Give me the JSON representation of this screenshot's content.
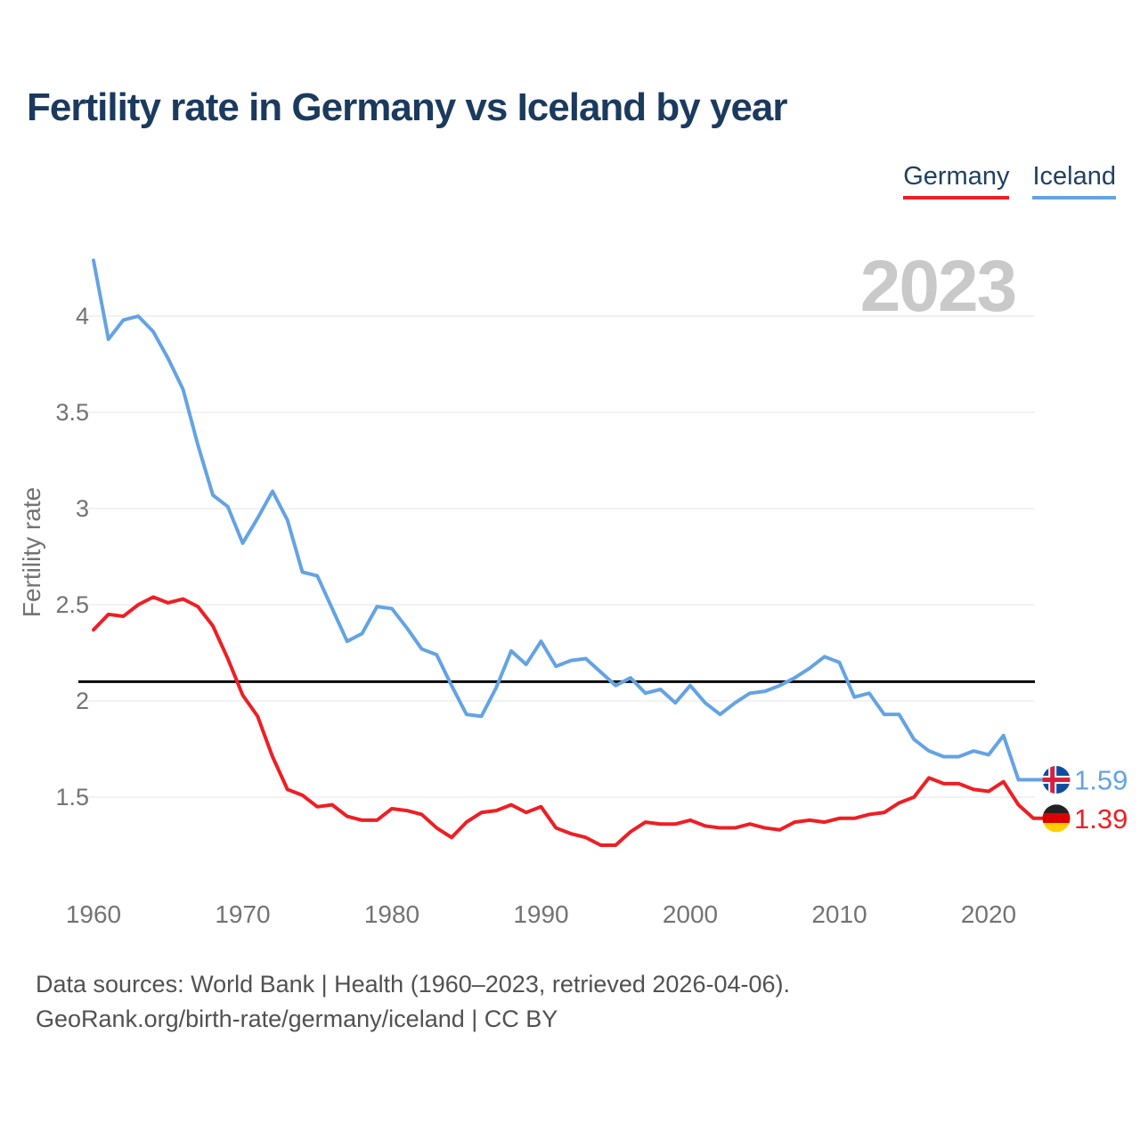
{
  "header": {
    "title": "Fertility rate in Germany vs Iceland by year"
  },
  "legend": {
    "items": [
      {
        "label": "Germany",
        "color": "#ed1f24"
      },
      {
        "label": "Iceland",
        "color": "#64a3e3"
      }
    ]
  },
  "chart_data": {
    "type": "line",
    "title": "Fertility rate in Germany vs Iceland by year",
    "xlabel": "",
    "ylabel": "Fertility rate",
    "grid": true,
    "legend_position": "top-right",
    "xlim": [
      1959,
      2025
    ],
    "ylim": [
      1.1,
      4.4
    ],
    "xticks": [
      1960,
      1970,
      1980,
      1990,
      2000,
      2010,
      2020
    ],
    "yticks": [
      1.5,
      2,
      2.5,
      3,
      3.5,
      4
    ],
    "ytick_labels": [
      "1.5",
      "2",
      "2.5",
      "3",
      "3.5",
      "4"
    ],
    "watermark": "2023",
    "reference_line": {
      "value": 2.1,
      "color": "#000000"
    },
    "x": [
      1960,
      1961,
      1962,
      1963,
      1964,
      1965,
      1966,
      1967,
      1968,
      1969,
      1970,
      1971,
      1972,
      1973,
      1974,
      1975,
      1976,
      1977,
      1978,
      1979,
      1980,
      1981,
      1982,
      1983,
      1984,
      1985,
      1986,
      1987,
      1988,
      1989,
      1990,
      1991,
      1992,
      1993,
      1994,
      1995,
      1996,
      1997,
      1998,
      1999,
      2000,
      2001,
      2002,
      2003,
      2004,
      2005,
      2006,
      2007,
      2008,
      2009,
      2010,
      2011,
      2012,
      2013,
      2014,
      2015,
      2016,
      2017,
      2018,
      2019,
      2020,
      2021,
      2022,
      2023
    ],
    "series": [
      {
        "name": "Germany",
        "color": "#ed1f24",
        "values": [
          2.37,
          2.45,
          2.44,
          2.5,
          2.54,
          2.51,
          2.53,
          2.49,
          2.39,
          2.22,
          2.03,
          1.92,
          1.71,
          1.54,
          1.51,
          1.45,
          1.46,
          1.4,
          1.38,
          1.38,
          1.44,
          1.43,
          1.41,
          1.34,
          1.29,
          1.37,
          1.42,
          1.43,
          1.46,
          1.42,
          1.45,
          1.34,
          1.31,
          1.29,
          1.25,
          1.25,
          1.32,
          1.37,
          1.36,
          1.36,
          1.38,
          1.35,
          1.34,
          1.34,
          1.36,
          1.34,
          1.33,
          1.37,
          1.38,
          1.37,
          1.39,
          1.39,
          1.41,
          1.42,
          1.47,
          1.5,
          1.6,
          1.57,
          1.57,
          1.54,
          1.53,
          1.58,
          1.46,
          1.39
        ]
      },
      {
        "name": "Iceland",
        "color": "#64a3e3",
        "values": [
          4.29,
          3.88,
          3.98,
          4.0,
          3.92,
          3.78,
          3.62,
          3.33,
          3.07,
          3.01,
          2.82,
          2.95,
          3.09,
          2.94,
          2.67,
          2.65,
          2.48,
          2.31,
          2.35,
          2.49,
          2.48,
          2.38,
          2.27,
          2.24,
          2.08,
          1.93,
          1.92,
          2.07,
          2.26,
          2.19,
          2.31,
          2.18,
          2.21,
          2.22,
          2.15,
          2.08,
          2.12,
          2.04,
          2.06,
          1.99,
          2.08,
          1.99,
          1.93,
          1.99,
          2.04,
          2.05,
          2.08,
          2.12,
          2.17,
          2.23,
          2.2,
          2.02,
          2.04,
          1.93,
          1.93,
          1.8,
          1.74,
          1.71,
          1.71,
          1.74,
          1.72,
          1.82,
          1.59,
          1.59
        ]
      }
    ],
    "end_labels": [
      {
        "series": "Iceland",
        "value": "1.59",
        "flag": "iceland"
      },
      {
        "series": "Germany",
        "value": "1.39",
        "flag": "germany"
      }
    ]
  },
  "footer": {
    "line1": "Data sources: World Bank | Health (1960–2023, retrieved 2026-04-06).",
    "line2": "GeoRank.org/birth-rate/germany/iceland | CC BY"
  },
  "colors": {
    "title": "#1b3a5e",
    "germany": "#ed1f24",
    "iceland": "#64a3e3",
    "gridline": "#ededed",
    "axis_text": "#737373",
    "watermark": "#c9c9c9",
    "reference_line": "#000000",
    "footer_text": "#515151",
    "iceland_flag_blue": "#0d4da1",
    "iceland_flag_red": "#d6213e",
    "germany_flag_black": "#222222",
    "germany_flag_red": "#dd0000",
    "germany_flag_gold": "#ffce00"
  }
}
